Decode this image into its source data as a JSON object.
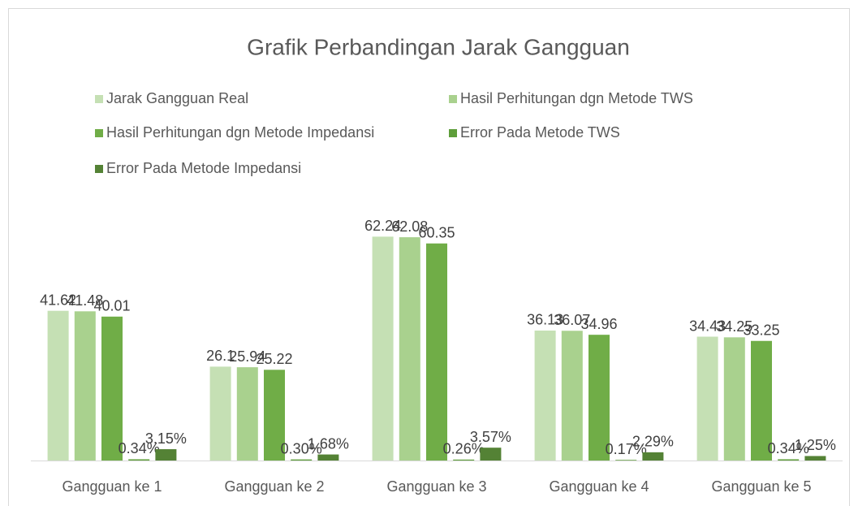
{
  "chart_data": {
    "type": "bar",
    "title": "Grafik Perbandingan Jarak Gangguan",
    "categories": [
      "Gangguan ke 1",
      "Gangguan ke 2",
      "Gangguan ke 3",
      "Gangguan ke 4",
      "Gangguan ke 5"
    ],
    "series": [
      {
        "name": "Jarak Gangguan Real",
        "color": "#c5e0b4",
        "values": [
          41.62,
          26.1,
          62.24,
          36.13,
          34.43
        ]
      },
      {
        "name": "Hasil Perhitungan dgn Metode TWS",
        "color": "#a9d18e",
        "values": [
          41.48,
          25.94,
          62.08,
          36.07,
          34.25
        ]
      },
      {
        "name": "Hasil Perhitungan dgn Metode Impedansi",
        "color": "#70ad47",
        "values": [
          40.01,
          25.22,
          60.35,
          34.96,
          33.25
        ]
      },
      {
        "name": "Error Pada Metode TWS",
        "color": "#5e9e3a",
        "values": [
          0.34,
          0.3,
          0.26,
          0.17,
          0.34
        ],
        "value_labels": [
          "0.34%",
          "0.30%",
          "0.26%",
          "0.17%",
          "0.34%"
        ]
      },
      {
        "name": "Error Pada Metode Impedansi",
        "color": "#548235",
        "values": [
          3.15,
          1.68,
          3.57,
          2.29,
          1.25
        ],
        "value_labels": [
          "3.15%",
          "1.68%",
          "3.57%",
          "2.29%",
          "1.25%"
        ]
      }
    ],
    "ylim": [
      0,
      70
    ]
  }
}
